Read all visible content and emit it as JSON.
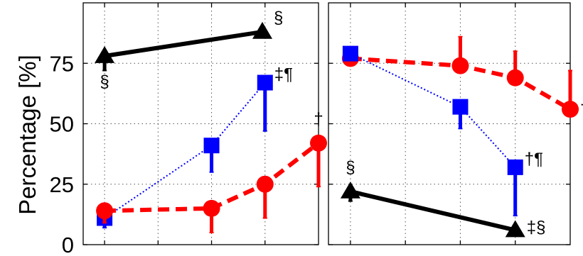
{
  "chart_data": {
    "type": "line",
    "ylabel": "Percentage [%]",
    "ylim": [
      0,
      100
    ],
    "yticks": [
      0,
      25,
      50,
      75
    ],
    "grid": true,
    "panels": [
      {
        "xlim": [
          0.6,
          5.0
        ],
        "x": [
          1,
          2,
          3,
          4
        ],
        "series": [
          {
            "marker": "triangle",
            "color": "#000000",
            "line": "solid",
            "points": [
              {
                "x": 1,
                "y": 78,
                "err": 6,
                "dir": "down",
                "label": "§"
              },
              {
                "x": 3.95,
                "y": 88,
                "err": 0,
                "dir": "down",
                "label": "§"
              }
            ]
          },
          {
            "marker": "square",
            "color": "#0000ff",
            "line": "dotted",
            "points": [
              {
                "x": 1,
                "y": 11,
                "err": 4,
                "dir": "down",
                "label": ""
              },
              {
                "x": 3,
                "y": 41,
                "err": 11,
                "dir": "down",
                "label": ""
              },
              {
                "x": 4,
                "y": 67,
                "err": 20,
                "dir": "down",
                "label": "‡¶"
              }
            ]
          },
          {
            "marker": "circle",
            "color": "#ff0000",
            "line": "dashed",
            "points": [
              {
                "x": 1,
                "y": 14,
                "err": 5,
                "dir": "down",
                "label": ""
              },
              {
                "x": 3,
                "y": 15,
                "err": 10,
                "dir": "down",
                "label": ""
              },
              {
                "x": 4,
                "y": 25,
                "err": 14,
                "dir": "down",
                "label": ""
              },
              {
                "x": 5,
                "y": 42,
                "err": 18,
                "dir": "down",
                "label": "†"
              }
            ]
          }
        ]
      },
      {
        "xlim": [
          0.6,
          5.0
        ],
        "x": [
          1,
          2,
          3,
          4
        ],
        "series": [
          {
            "marker": "circle",
            "color": "#ff0000",
            "line": "dashed",
            "points": [
              {
                "x": 1,
                "y": 77,
                "err": 0,
                "dir": "up",
                "label": ""
              },
              {
                "x": 3,
                "y": 74,
                "err": 12,
                "dir": "up",
                "label": ""
              },
              {
                "x": 4,
                "y": 69,
                "err": 11,
                "dir": "up",
                "label": ""
              },
              {
                "x": 5,
                "y": 56,
                "err": 16,
                "dir": "up",
                "label": "†"
              }
            ]
          },
          {
            "marker": "square",
            "color": "#0000ff",
            "line": "dotted",
            "points": [
              {
                "x": 1,
                "y": 79,
                "err": 0,
                "dir": "up",
                "label": ""
              },
              {
                "x": 3,
                "y": 57,
                "err": 9,
                "dir": "down",
                "label": ""
              },
              {
                "x": 4,
                "y": 32,
                "err": 20,
                "dir": "down",
                "label": "†¶"
              }
            ]
          },
          {
            "marker": "triangle",
            "color": "#000000",
            "line": "solid",
            "points": [
              {
                "x": 1,
                "y": 22,
                "err": 4,
                "dir": "down",
                "label": "§"
              },
              {
                "x": 4,
                "y": 6,
                "err": 0,
                "dir": "down",
                "label": "‡§"
              }
            ]
          }
        ]
      }
    ]
  }
}
